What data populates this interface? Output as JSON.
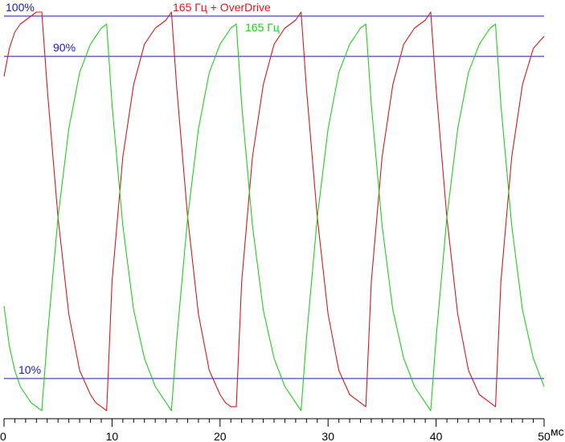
{
  "chart_data": {
    "type": "line",
    "title": "",
    "xlabel": "",
    "x_unit": "мс",
    "ylabel": "",
    "xlim": [
      0,
      50
    ],
    "x_ticks": [
      "0",
      "10",
      "20",
      "30",
      "40",
      "50"
    ],
    "x_minor_step": 1,
    "ylim": [
      0,
      100
    ],
    "grid": false,
    "reference_lines": [
      {
        "label": "100%",
        "y": 100,
        "color": "#1a1aa8"
      },
      {
        "label": "90%",
        "y": 90,
        "color": "#1a1aa8"
      },
      {
        "label": "10%",
        "y": 10,
        "color": "#1a1aa8"
      }
    ],
    "series": [
      {
        "name": "165 Гц + OverDrive",
        "color": "#d11b1b",
        "x": [
          0,
          0.5,
          1.0,
          1.5,
          2.0,
          2.5,
          3.0,
          3.5,
          4.0,
          5.0,
          6.0,
          7.0,
          8.0,
          8.5,
          9.0,
          9.5,
          10.0,
          11.0,
          12.0,
          13.0,
          14.0,
          15.0,
          15.5,
          16.0,
          17.0,
          18.0,
          19.0,
          20.0,
          20.5,
          21.0,
          21.5,
          22.0,
          23.0,
          24.0,
          25.0,
          26.0,
          27.0,
          27.5,
          28.0,
          29.0,
          30.0,
          31.0,
          32.0,
          33.0,
          33.5,
          34.0,
          35.0,
          36.0,
          37.0,
          38.0,
          39.0,
          39.5,
          40.0,
          41.0,
          42.0,
          43.0,
          44.0,
          45.0,
          45.5,
          46.0,
          47.0,
          48.0,
          49.0,
          50.0
        ],
        "y": [
          85,
          92,
          96,
          98,
          99,
          100,
          101,
          101,
          82,
          50,
          26,
          12,
          6,
          4,
          3,
          2,
          34,
          65,
          83,
          93,
          97,
          99,
          101,
          82,
          50,
          26,
          12,
          6,
          4,
          3,
          3,
          34,
          65,
          83,
          93,
          97,
          99,
          101,
          82,
          50,
          26,
          12,
          6,
          4,
          3,
          34,
          65,
          83,
          93,
          97,
          99,
          101,
          82,
          50,
          26,
          12,
          6,
          4,
          3,
          34,
          65,
          83,
          92,
          95
        ]
      },
      {
        "name": "165 Гц",
        "color": "#22cc22",
        "x": [
          0,
          0.5,
          1.0,
          1.5,
          2.0,
          2.5,
          3.0,
          3.5,
          4.0,
          5.0,
          6.0,
          7.0,
          8.0,
          9.0,
          9.5,
          10.0,
          11.0,
          12.0,
          13.0,
          14.0,
          15.0,
          15.5,
          16.0,
          17.0,
          18.0,
          19.0,
          20.0,
          21.0,
          21.5,
          22.0,
          23.0,
          24.0,
          25.0,
          26.0,
          27.0,
          27.5,
          28.0,
          29.0,
          30.0,
          31.0,
          32.0,
          33.0,
          33.5,
          34.0,
          35.0,
          36.0,
          37.0,
          38.0,
          39.0,
          39.5,
          40.0,
          41.0,
          42.0,
          43.0,
          44.0,
          45.0,
          45.5,
          46.0,
          47.0,
          48.0,
          49.0,
          50.0
        ],
        "y": [
          28,
          18,
          12,
          8,
          6,
          4,
          3,
          2,
          20,
          50,
          72,
          86,
          93,
          97,
          98,
          78,
          48,
          27,
          15,
          8,
          4,
          2,
          20,
          50,
          72,
          86,
          93,
          97,
          98,
          78,
          48,
          27,
          15,
          8,
          4,
          2,
          20,
          50,
          72,
          86,
          93,
          97,
          98,
          78,
          48,
          27,
          15,
          8,
          4,
          2,
          20,
          50,
          72,
          86,
          93,
          97,
          98,
          78,
          48,
          27,
          15,
          8
        ]
      }
    ]
  }
}
